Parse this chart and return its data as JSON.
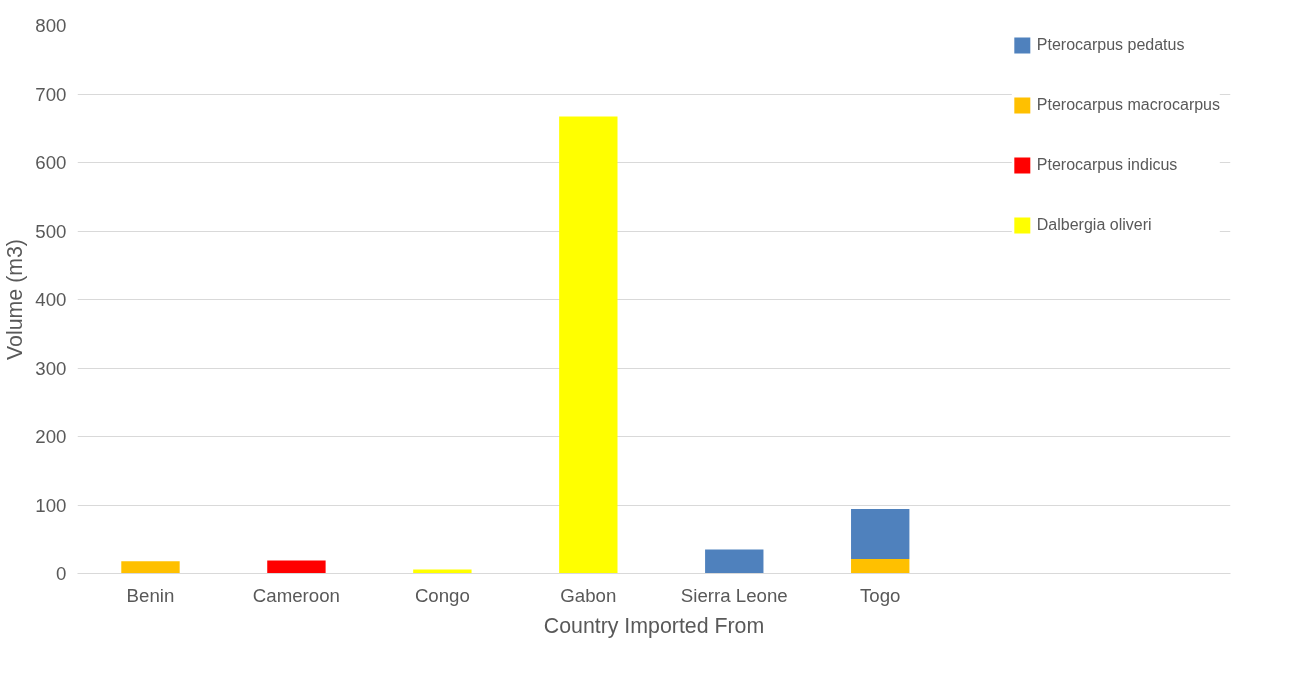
{
  "chart_data": {
    "type": "bar",
    "stacked": true,
    "xlabel": "Country Imported From",
    "ylabel": "Volume (m3)",
    "categories": [
      "Benin",
      "Cameroon",
      "Congo",
      "Gabon",
      "Sierra Leone",
      "Togo"
    ],
    "series": [
      {
        "name": "Dalbergia oliveri",
        "color": "#ffff00",
        "values": [
          0,
          0,
          6,
          667,
          0,
          0
        ]
      },
      {
        "name": "Pterocarpus indicus",
        "color": "#ff0000",
        "values": [
          0,
          19,
          0,
          0,
          0,
          0
        ]
      },
      {
        "name": "Pterocarpus macrocarpus",
        "color": "#ffc000",
        "values": [
          18,
          0,
          0,
          0,
          0,
          21
        ]
      },
      {
        "name": "Pterocarpus pedatus",
        "color": "#4f81bd",
        "values": [
          0,
          0,
          0,
          0,
          35,
          73
        ]
      }
    ],
    "ylim": [
      0,
      800
    ],
    "yticks": [
      0,
      100,
      200,
      300,
      400,
      500,
      600,
      700,
      800
    ],
    "grid": "y",
    "legend": "right"
  }
}
